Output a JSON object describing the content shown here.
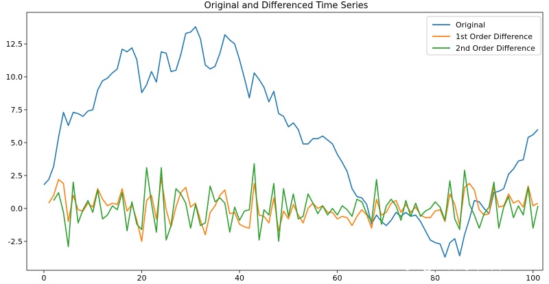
{
  "chart_data": {
    "type": "line",
    "title": "Original and Differenced Time Series",
    "xlabel": "",
    "ylabel": "",
    "xlim": [
      -3.5,
      102
    ],
    "ylim": [
      -4.7,
      14.9
    ],
    "xticks": [
      0,
      20,
      40,
      60,
      80,
      100
    ],
    "yticks": [
      -2.5,
      0.0,
      2.5,
      5.0,
      7.5,
      10.0,
      12.5
    ],
    "grid": false,
    "legend_position": "top-right",
    "series": [
      {
        "name": "Original",
        "color": "#1f77b4",
        "start_x": 0,
        "values": [
          1.8,
          2.2,
          3.2,
          5.4,
          7.3,
          6.3,
          7.3,
          7.2,
          7.0,
          7.4,
          7.5,
          9.0,
          9.7,
          9.9,
          10.3,
          10.6,
          12.1,
          11.9,
          12.2,
          11.3,
          8.8,
          9.4,
          10.4,
          9.6,
          11.9,
          11.8,
          10.4,
          10.5,
          11.7,
          13.3,
          13.4,
          13.8,
          12.9,
          10.9,
          10.6,
          10.8,
          11.8,
          13.2,
          12.8,
          12.5,
          11.3,
          9.9,
          8.4,
          10.3,
          9.8,
          9.2,
          8.1,
          8.9,
          7.2,
          7.0,
          6.2,
          6.5,
          6.0,
          4.9,
          4.9,
          5.3,
          5.3,
          5.5,
          5.2,
          4.9,
          4.1,
          3.5,
          2.8,
          1.5,
          0.9,
          0.8,
          0.3,
          -1.2,
          -0.5,
          -1.0,
          -1.3,
          -0.9,
          -0.3,
          -0.6,
          -0.3,
          -0.6,
          -0.5,
          -1.0,
          -1.7,
          -2.4,
          -2.6,
          -2.7,
          -3.7,
          -2.6,
          -2.3,
          -3.6,
          -2.0,
          -0.8,
          0.6,
          0.5,
          0.0,
          -0.4,
          1.2,
          1.3,
          1.5,
          2.6,
          3.0,
          3.6,
          3.7,
          5.4,
          5.6,
          6.0
        ]
      },
      {
        "name": "1st Order Difference",
        "color": "#ff7f0e",
        "start_x": 1,
        "values": [
          0.4,
          1.0,
          2.2,
          1.9,
          -1.0,
          1.0,
          -0.1,
          -0.2,
          0.4,
          0.1,
          1.5,
          0.7,
          0.2,
          0.4,
          0.3,
          1.5,
          -0.2,
          0.3,
          -0.9,
          -2.5,
          0.6,
          1.0,
          -0.8,
          2.3,
          -0.1,
          -1.4,
          0.1,
          1.2,
          1.6,
          0.1,
          0.4,
          -0.9,
          -2.0,
          -0.3,
          0.2,
          1.0,
          1.4,
          -0.4,
          -0.3,
          -1.2,
          -1.4,
          -1.5,
          1.9,
          -0.5,
          -0.6,
          -1.1,
          0.8,
          -1.7,
          -0.2,
          -0.8,
          0.3,
          -0.5,
          -1.1,
          0.0,
          0.4,
          0.0,
          0.2,
          -0.3,
          -0.3,
          -0.8,
          -0.6,
          -0.7,
          -1.3,
          -0.6,
          -0.1,
          -0.5,
          -1.5,
          0.7,
          -0.5,
          -0.3,
          0.4,
          0.6,
          -0.3,
          0.3,
          -0.3,
          0.1,
          -0.5,
          -0.7,
          -0.7,
          -0.2,
          -0.1,
          -1.0,
          1.1,
          0.3,
          -1.3,
          1.6,
          1.9,
          1.4,
          -0.1,
          -0.5,
          -0.4,
          1.6,
          0.1,
          0.2,
          1.1,
          0.4,
          0.6,
          0.1,
          1.7,
          0.2,
          0.4
        ]
      },
      {
        "name": "2nd Order Difference",
        "color": "#2ca02c",
        "start_x": 2,
        "values": [
          0.6,
          1.2,
          -0.3,
          -2.9,
          2.0,
          -1.1,
          -0.1,
          0.6,
          -0.3,
          1.4,
          -0.8,
          -0.5,
          0.2,
          -0.1,
          1.2,
          -1.7,
          0.5,
          -1.2,
          -1.6,
          3.1,
          0.4,
          -1.8,
          3.1,
          -2.4,
          -1.3,
          1.5,
          1.1,
          0.4,
          -1.5,
          0.3,
          -1.3,
          -1.1,
          1.7,
          0.5,
          0.8,
          0.4,
          -1.8,
          0.1,
          -0.9,
          -0.2,
          -0.1,
          3.4,
          -2.4,
          -0.1,
          -0.5,
          1.9,
          -2.5,
          1.5,
          -0.6,
          1.1,
          -0.8,
          -0.6,
          1.1,
          0.4,
          -0.4,
          0.2,
          -0.5,
          0.0,
          -0.5,
          0.2,
          -0.1,
          -0.6,
          0.7,
          0.5,
          -0.4,
          -1.0,
          2.2,
          -1.2,
          0.2,
          0.7,
          0.2,
          -0.9,
          0.6,
          -0.6,
          0.4,
          -0.6,
          -0.2,
          0.0,
          0.5,
          0.1,
          -0.9,
          2.1,
          -0.8,
          -1.6,
          2.9,
          0.3,
          -0.5,
          -1.5,
          -0.4,
          0.1,
          2.0,
          -1.5,
          0.1,
          0.9,
          -0.7,
          0.2,
          -0.5,
          1.6,
          -1.5,
          0.2
        ]
      }
    ]
  },
  "watermark": {
    "line1": "知乎 @无敌小怪兽Zz",
    "line2": "CSDN @无敌小怪兽Zz"
  }
}
